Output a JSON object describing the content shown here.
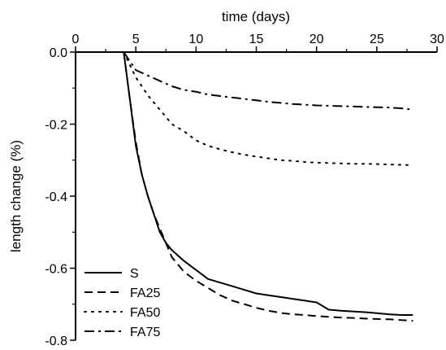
{
  "chart_data": {
    "type": "line",
    "title": "",
    "xlabel": "time (days)",
    "ylabel": "length change (%)",
    "xlim": [
      0,
      30
    ],
    "ylim": [
      -0.8,
      0.0
    ],
    "x_ticks": [
      0,
      5,
      10,
      15,
      20,
      25,
      30
    ],
    "x_tick_labels": [
      "0",
      "5",
      "10",
      "15",
      "20",
      "25",
      "30"
    ],
    "y_ticks": [
      0.0,
      -0.2,
      -0.4,
      -0.6,
      -0.8
    ],
    "y_tick_labels": [
      "0.0",
      "-0.2",
      "-0.4",
      "-0.6",
      "-0.8"
    ],
    "x_axis_position": "top",
    "grid": false,
    "legend_position": "bottom-left",
    "series": [
      {
        "name": "S",
        "style": "solid",
        "x": [
          4,
          4.5,
          5,
          5.5,
          6,
          6.5,
          7,
          7.5,
          8,
          9,
          10,
          11,
          12,
          13,
          14,
          15,
          16,
          17,
          18,
          19,
          20,
          21,
          22,
          23,
          24,
          25,
          26,
          27,
          28
        ],
        "y": [
          0,
          -0.13,
          -0.26,
          -0.34,
          -0.4,
          -0.45,
          -0.5,
          -0.53,
          -0.55,
          -0.58,
          -0.605,
          -0.63,
          -0.64,
          -0.65,
          -0.66,
          -0.67,
          -0.675,
          -0.68,
          -0.685,
          -0.69,
          -0.695,
          -0.715,
          -0.718,
          -0.72,
          -0.722,
          -0.725,
          -0.728,
          -0.73,
          -0.73
        ]
      },
      {
        "name": "FA25",
        "style": "dashed",
        "x": [
          4,
          4.5,
          5,
          5.5,
          6,
          6.5,
          7,
          7.5,
          8,
          9,
          10,
          11,
          12,
          13,
          14,
          15,
          16,
          17,
          18,
          19,
          20,
          21,
          22,
          23,
          24,
          25,
          26,
          27,
          28
        ],
        "y": [
          0,
          -0.13,
          -0.25,
          -0.34,
          -0.4,
          -0.45,
          -0.49,
          -0.53,
          -0.57,
          -0.61,
          -0.635,
          -0.655,
          -0.675,
          -0.69,
          -0.7,
          -0.71,
          -0.718,
          -0.724,
          -0.728,
          -0.73,
          -0.733,
          -0.735,
          -0.737,
          -0.738,
          -0.74,
          -0.741,
          -0.742,
          -0.744,
          -0.746
        ]
      },
      {
        "name": "FA50",
        "style": "dotted",
        "x": [
          4,
          5,
          6,
          7,
          8,
          9,
          10,
          11,
          12,
          13,
          14,
          15,
          16,
          17,
          18,
          19,
          20,
          21,
          22,
          23,
          24,
          25,
          26,
          27,
          28
        ],
        "y": [
          0,
          -0.07,
          -0.12,
          -0.16,
          -0.2,
          -0.22,
          -0.245,
          -0.26,
          -0.27,
          -0.278,
          -0.285,
          -0.29,
          -0.295,
          -0.3,
          -0.302,
          -0.305,
          -0.307,
          -0.308,
          -0.309,
          -0.31,
          -0.31,
          -0.311,
          -0.312,
          -0.313,
          -0.314
        ]
      },
      {
        "name": "FA75",
        "style": "dashdot",
        "x": [
          4,
          5,
          6,
          7,
          8,
          9,
          10,
          11,
          12,
          13,
          14,
          15,
          16,
          17,
          18,
          19,
          20,
          21,
          22,
          23,
          24,
          25,
          26,
          27,
          28
        ],
        "y": [
          0,
          -0.05,
          -0.065,
          -0.08,
          -0.095,
          -0.105,
          -0.11,
          -0.118,
          -0.122,
          -0.126,
          -0.13,
          -0.134,
          -0.138,
          -0.141,
          -0.144,
          -0.146,
          -0.148,
          -0.149,
          -0.15,
          -0.151,
          -0.152,
          -0.153,
          -0.154,
          -0.156,
          -0.16
        ]
      }
    ]
  }
}
